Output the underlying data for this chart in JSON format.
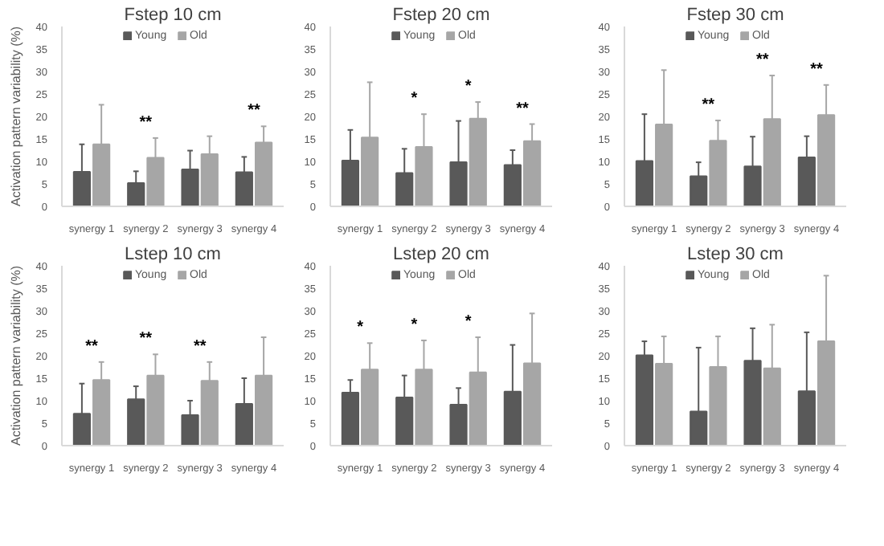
{
  "chart_data": [
    {
      "type": "bar",
      "title": "Fstep 10 cm",
      "ylabel": "Activation pattern variability (%)",
      "categories": [
        "synergy 1",
        "synergy 2",
        "synergy 3",
        "synergy 4"
      ],
      "ylim": [
        0,
        40
      ],
      "yticks": [
        0,
        5,
        10,
        15,
        20,
        25,
        30,
        35,
        40
      ],
      "grid": false,
      "legend": "top",
      "series": [
        {
          "name": "Young",
          "color": "#595959",
          "values": [
            7.7,
            5.2,
            8.2,
            7.6
          ],
          "errors": [
            [
              7.7,
              13.8
            ],
            [
              5.2,
              7.8
            ],
            [
              8.2,
              12.4
            ],
            [
              7.6,
              11
            ]
          ]
        },
        {
          "name": "Old",
          "color": "#a6a6a6",
          "values": [
            13.8,
            10.8,
            11.6,
            14.2
          ],
          "errors": [
            [
              13.8,
              22.6
            ],
            [
              10.8,
              15.2
            ],
            [
              11.6,
              15.6
            ],
            [
              14.2,
              17.8
            ]
          ]
        }
      ],
      "annotations": [
        "**",
        "**"
      ]
    },
    {
      "type": "bar",
      "title": "Fstep 20 cm",
      "categories": [
        "synergy 1",
        "synergy 2",
        "synergy 3",
        "synergy 4"
      ],
      "ylim": [
        0,
        40
      ],
      "yticks": [
        0,
        5,
        10,
        15,
        20,
        25,
        30,
        35,
        40
      ],
      "grid": false,
      "legend": "top",
      "series": [
        {
          "name": "Young",
          "color": "#595959",
          "values": [
            10.2,
            7.4,
            9.8,
            9.2
          ],
          "errors": [
            [
              10.2,
              17
            ],
            [
              7.4,
              12.8
            ],
            [
              9.8,
              19
            ],
            [
              9.2,
              12.5
            ]
          ]
        },
        {
          "name": "Old",
          "color": "#a6a6a6",
          "values": [
            15.3,
            13.2,
            19.5,
            14.5
          ],
          "errors": [
            [
              15.3,
              27.6
            ],
            [
              13.2,
              20.5
            ],
            [
              19.5,
              23.2
            ],
            [
              14.5,
              18.3
            ]
          ]
        }
      ],
      "annotations": [
        "*",
        "*",
        "**"
      ]
    },
    {
      "type": "bar",
      "title": "Fstep 30 cm",
      "categories": [
        "synergy 1",
        "synergy 2",
        "synergy 3",
        "synergy 4"
      ],
      "ylim": [
        0,
        40
      ],
      "yticks": [
        0,
        5,
        10,
        15,
        20,
        25,
        30,
        35,
        40
      ],
      "grid": false,
      "legend": "top",
      "series": [
        {
          "name": "Young",
          "color": "#595959",
          "values": [
            10.1,
            6.7,
            8.9,
            10.9
          ],
          "errors": [
            [
              10.1,
              20.5
            ],
            [
              6.7,
              9.8
            ],
            [
              8.9,
              15.5
            ],
            [
              10.9,
              15.6
            ]
          ]
        },
        {
          "name": "Old",
          "color": "#a6a6a6",
          "values": [
            18.2,
            14.6,
            19.4,
            20.3
          ],
          "errors": [
            [
              18.2,
              30.3
            ],
            [
              14.6,
              19.1
            ],
            [
              19.4,
              29.1
            ],
            [
              20.3,
              27
            ]
          ]
        }
      ],
      "annotations": [
        "**",
        "**",
        "**"
      ]
    },
    {
      "type": "bar",
      "title": "Lstep 10 cm",
      "ylabel": "Activation pattern variability (%)",
      "categories": [
        "synergy 1",
        "synergy 2",
        "synergy 3",
        "synergy 4"
      ],
      "ylim": [
        0,
        40
      ],
      "yticks": [
        0,
        5,
        10,
        15,
        20,
        25,
        30,
        35,
        40
      ],
      "grid": false,
      "legend": "top",
      "series": [
        {
          "name": "Young",
          "color": "#595959",
          "values": [
            7.1,
            10.3,
            6.8,
            9.3
          ],
          "errors": [
            [
              7.1,
              13.8
            ],
            [
              10.3,
              13.2
            ],
            [
              6.8,
              10
            ],
            [
              9.3,
              15
            ]
          ]
        },
        {
          "name": "Old",
          "color": "#a6a6a6",
          "values": [
            14.6,
            15.6,
            14.4,
            15.6
          ],
          "errors": [
            [
              14.6,
              18.6
            ],
            [
              15.6,
              20.3
            ],
            [
              14.4,
              18.6
            ],
            [
              15.6,
              24.1
            ]
          ]
        }
      ],
      "annotations": [
        "**",
        "**",
        "**"
      ]
    },
    {
      "type": "bar",
      "title": "Lstep 20 cm",
      "categories": [
        "synergy 1",
        "synergy 2",
        "synergy 3",
        "synergy 4"
      ],
      "ylim": [
        0,
        40
      ],
      "yticks": [
        0,
        5,
        10,
        15,
        20,
        25,
        30,
        35,
        40
      ],
      "grid": false,
      "legend": "top",
      "series": [
        {
          "name": "Young",
          "color": "#595959",
          "values": [
            11.8,
            10.7,
            9.1,
            12
          ],
          "errors": [
            [
              11.8,
              14.6
            ],
            [
              10.7,
              15.6
            ],
            [
              9.1,
              12.8
            ],
            [
              12,
              22.4
            ]
          ]
        },
        {
          "name": "Old",
          "color": "#a6a6a6",
          "values": [
            16.9,
            16.9,
            16.3,
            18.3
          ],
          "errors": [
            [
              16.9,
              22.8
            ],
            [
              16.9,
              23.4
            ],
            [
              16.3,
              24.1
            ],
            [
              18.3,
              29.4
            ]
          ]
        }
      ],
      "annotations": [
        "*",
        "*",
        "*"
      ]
    },
    {
      "type": "bar",
      "title": "Lstep 30 cm",
      "categories": [
        "synergy 1",
        "synergy 2",
        "synergy 3",
        "synergy 4"
      ],
      "ylim": [
        0,
        40
      ],
      "yticks": [
        0,
        5,
        10,
        15,
        20,
        25,
        30,
        35,
        40
      ],
      "grid": false,
      "legend": "top",
      "series": [
        {
          "name": "Young",
          "color": "#595959",
          "values": [
            20.1,
            7.6,
            18.9,
            12.1
          ],
          "errors": [
            [
              20.1,
              23.2
            ],
            [
              7.6,
              21.8
            ],
            [
              18.9,
              26.1
            ],
            [
              12.1,
              25.2
            ]
          ]
        },
        {
          "name": "Old",
          "color": "#a6a6a6",
          "values": [
            18.2,
            17.5,
            17.2,
            23.2
          ],
          "errors": [
            [
              18.2,
              24.3
            ],
            [
              17.5,
              24.3
            ],
            [
              17.2,
              26.9
            ],
            [
              23.2,
              37.8
            ]
          ]
        }
      ]
    }
  ]
}
